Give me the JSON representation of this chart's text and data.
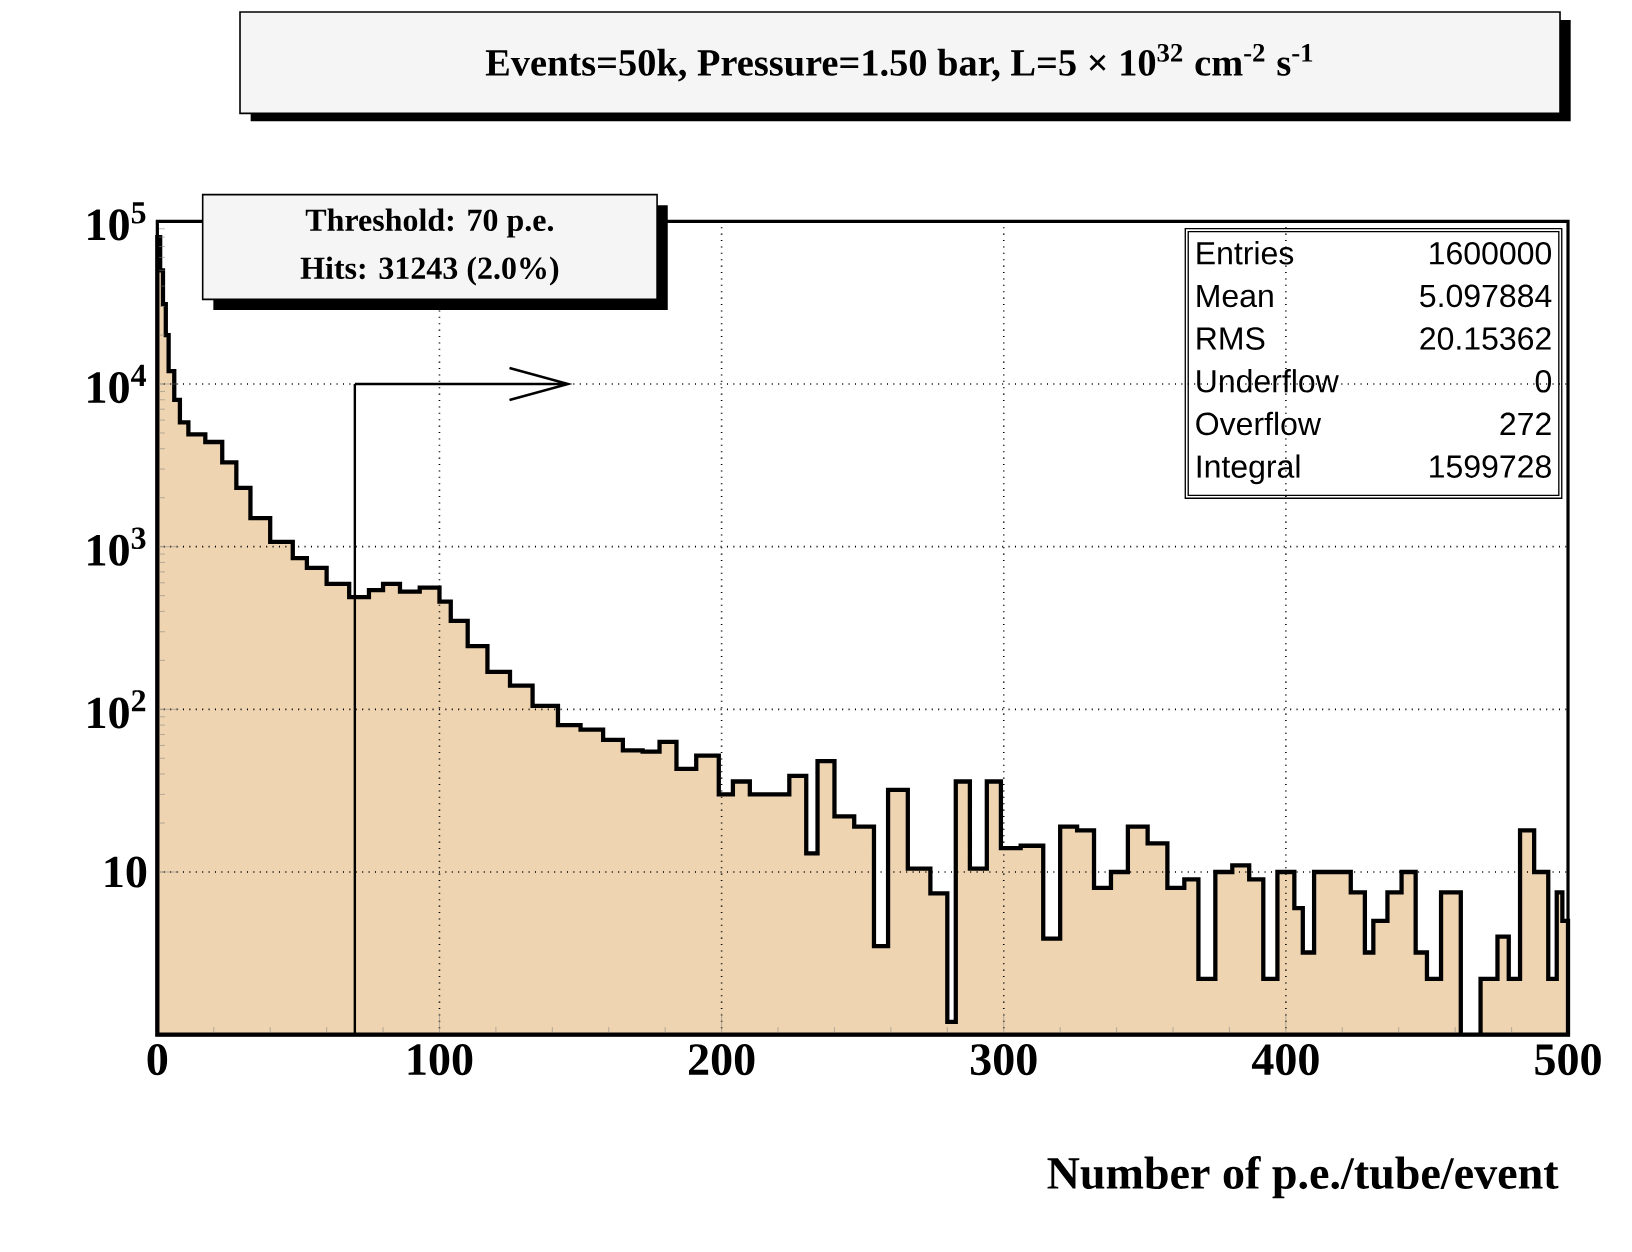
{
  "chart_data": {
    "type": "histogram",
    "title": "Events=50k, Pressure=1.50 bar, L=5 × 10$^{32}$ cm$^{-2}$ s$^{-1}$",
    "xlabel": "Number of p.e./tube/event",
    "bins": [
      0,
      1,
      2,
      3,
      4,
      6,
      8,
      11,
      17,
      23,
      28,
      33,
      40,
      48,
      53,
      60,
      68,
      75,
      80,
      86,
      93,
      100,
      104,
      110,
      117,
      125,
      133,
      142,
      150,
      158,
      165,
      172,
      178,
      184,
      191,
      199,
      204,
      210,
      216,
      224,
      230,
      234,
      240,
      247,
      254,
      259,
      266,
      274,
      280,
      283,
      288,
      294,
      299,
      306,
      314,
      320,
      326,
      332,
      338,
      344,
      351,
      358,
      364,
      369,
      375,
      381,
      387,
      392,
      397,
      403,
      406,
      410,
      416,
      423,
      428,
      431,
      436,
      441,
      446,
      450,
      455,
      462,
      469,
      475,
      479,
      483,
      488,
      493,
      496,
      498,
      500
    ],
    "values": [
      80000,
      50000,
      31000,
      20000,
      12000,
      8000,
      5800,
      4900,
      4400,
      3300,
      2300,
      1500,
      1070,
      850,
      740,
      590,
      490,
      540,
      590,
      530,
      560,
      460,
      350,
      245,
      170,
      140,
      105,
      80,
      75,
      65,
      56,
      55,
      63,
      43,
      52,
      30,
      36,
      30,
      30,
      39,
      13,
      48,
      22,
      19,
      3.5,
      32,
      10.5,
      7.4,
      1.2,
      36,
      10.5,
      36,
      14,
      14.5,
      3.9,
      19,
      18,
      8,
      10,
      19,
      15,
      8,
      9,
      2.2,
      10,
      11,
      9,
      2.2,
      10,
      6,
      3.2,
      10,
      10,
      7.5,
      3.2,
      5,
      7.5,
      10,
      3.2,
      2.2,
      7.5,
      1,
      2.2,
      4,
      2.2,
      18,
      10,
      2.2,
      7.5,
      5
    ],
    "color": "#eed4b0",
    "log": "y",
    "xlim": [
      0,
      500
    ],
    "ylim": [
      1,
      100000
    ],
    "xticks": [
      0,
      100,
      200,
      300,
      400,
      500
    ],
    "yticks": [
      {
        "value": 10,
        "label": "10"
      },
      {
        "value": 100,
        "label": "10$^{2}$"
      },
      {
        "value": 1000,
        "label": "10$^{3}$"
      },
      {
        "value": 10000,
        "label": "10$^{4}$"
      },
      {
        "value": 100000,
        "label": "10$^{5}$"
      }
    ],
    "grid": true,
    "ref_lines": [
      {
        "axis": "x",
        "value": 70
      }
    ],
    "annotations": [
      "Threshold: 70 p.e.",
      "Hits: 31243 (2.0%)",
      "Entries",
      "1600000",
      "Mean",
      "5.097884",
      "RMS",
      "20.15362",
      "Underflow",
      "0",
      "Overflow",
      "272",
      "Integral",
      "1599728"
    ]
  }
}
